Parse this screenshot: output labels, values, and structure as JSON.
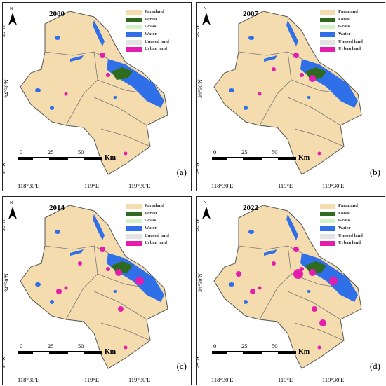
{
  "legend": [
    {
      "label": "Farmland",
      "color": "#f5dcae"
    },
    {
      "label": "Forest",
      "color": "#2e6b1e"
    },
    {
      "label": "Grass",
      "color": "#d4f2c8"
    },
    {
      "label": "Water",
      "color": "#2f6fe8"
    },
    {
      "label": "Unused land",
      "color": "#e3e3e3"
    },
    {
      "label": "Urban land",
      "color": "#e61cae"
    }
  ],
  "north_label": "N",
  "lat_labels": [
    "35°N",
    "34°30′N",
    "34°N"
  ],
  "lon_labels": [
    "118°30′E",
    "119°E",
    "119°30′E"
  ],
  "scale": {
    "ticks": [
      "0",
      "25",
      "50"
    ],
    "unit": "Km"
  },
  "panels": [
    {
      "year": "2000",
      "tag": "(a)",
      "urban_level": 1
    },
    {
      "year": "2007",
      "tag": "(b)",
      "urban_level": 2
    },
    {
      "year": "2014",
      "tag": "(c)",
      "urban_level": 3
    },
    {
      "year": "2022",
      "tag": "(d)",
      "urban_level": 4
    }
  ]
}
